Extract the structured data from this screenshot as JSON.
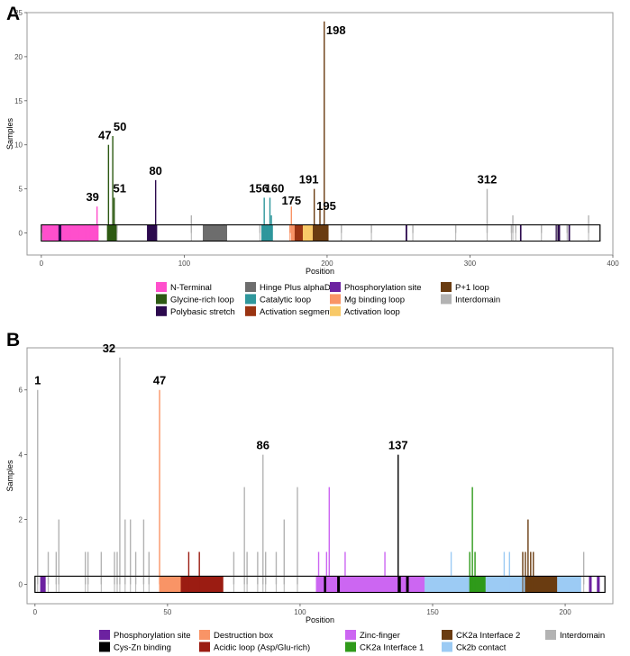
{
  "chart_data": [
    {
      "panel": "A",
      "type": "bar",
      "xlabel": "Position",
      "ylabel": "Samples",
      "xlim": [
        -10,
        400
      ],
      "ylim": [
        -2.5,
        25
      ],
      "xticks": [
        0,
        100,
        200,
        300,
        400
      ],
      "yticks": [
        0,
        5,
        10,
        15,
        20,
        25
      ],
      "legend": {
        "placement": "bottom",
        "columns": [
          [
            "N-Terminal",
            "Glycine-rich loop",
            "Polybasic stretch"
          ],
          [
            "Hinge Plus alphaD",
            "Catalytic loop",
            "Activation segment"
          ],
          [
            "Phosphorylation site",
            "Mg binding loop",
            "Activation loop"
          ],
          [
            "P+1 loop",
            "Interdomain"
          ]
        ]
      },
      "domain_colors": {
        "N-Terminal": "#ff4fcc",
        "Glycine-rich loop": "#2d5a13",
        "Polybasic stretch": "#2c0a4e",
        "Hinge Plus alphaD": "#6d6d6d",
        "Catalytic loop": "#2f979c",
        "Activation segment": "#9a3412",
        "Phosphorylation site": "#6c22a0",
        "Mg binding loop": "#f99466",
        "Activation loop": "#f8c968",
        "P+1 loop": "#6a3c11",
        "Interdomain": "#b3b3b3"
      },
      "protein_length": 391,
      "domains": [
        {
          "name": "N-Terminal",
          "start": 1,
          "end": 40
        },
        {
          "name": "Polybasic stretch",
          "start": 12,
          "end": 14
        },
        {
          "name": "Glycine-rich loop",
          "start": 46,
          "end": 53
        },
        {
          "name": "Polybasic stretch",
          "start": 74,
          "end": 81
        },
        {
          "name": "Hinge Plus alphaD",
          "start": 113,
          "end": 130
        },
        {
          "name": "Catalytic loop",
          "start": 154,
          "end": 162
        },
        {
          "name": "Activation segment",
          "start": 175,
          "end": 201
        },
        {
          "name": "Mg binding loop",
          "start": 175,
          "end": 177
        },
        {
          "name": "Activation loop",
          "start": 183,
          "end": 190
        },
        {
          "name": "P+1 loop",
          "start": 190,
          "end": 201
        },
        {
          "name": "Polybasic stretch",
          "start": 255,
          "end": 256
        },
        {
          "name": "Polybasic stretch",
          "start": 335,
          "end": 336
        },
        {
          "name": "Polybasic stretch",
          "start": 360,
          "end": 363
        },
        {
          "name": "Polybasic stretch",
          "start": 369,
          "end": 370
        }
      ],
      "mutations": [
        {
          "x": 1,
          "y": 1,
          "d": "N-Terminal"
        },
        {
          "x": 20,
          "y": 1,
          "d": "N-Terminal"
        },
        {
          "x": 26,
          "y": 1,
          "d": "N-Terminal"
        },
        {
          "x": 31,
          "y": 1,
          "d": "N-Terminal"
        },
        {
          "x": 34,
          "y": 1,
          "d": "N-Terminal"
        },
        {
          "x": 39,
          "y": 3,
          "d": "N-Terminal"
        },
        {
          "x": 47,
          "y": 10,
          "d": "Glycine-rich loop"
        },
        {
          "x": 50,
          "y": 11,
          "d": "Glycine-rich loop"
        },
        {
          "x": 51,
          "y": 4,
          "d": "Glycine-rich loop"
        },
        {
          "x": 52,
          "y": 1,
          "d": "Glycine-rich loop"
        },
        {
          "x": 53,
          "y": 1,
          "d": "Interdomain"
        },
        {
          "x": 80,
          "y": 6,
          "d": "Polybasic stretch"
        },
        {
          "x": 105,
          "y": 2,
          "d": "Interdomain"
        },
        {
          "x": 128,
          "y": 1,
          "d": "Hinge Plus alphaD"
        },
        {
          "x": 153,
          "y": 1,
          "d": "Interdomain"
        },
        {
          "x": 156,
          "y": 4,
          "d": "Catalytic loop"
        },
        {
          "x": 158,
          "y": 1,
          "d": "Catalytic loop"
        },
        {
          "x": 160,
          "y": 4,
          "d": "Catalytic loop"
        },
        {
          "x": 161,
          "y": 2,
          "d": "Catalytic loop"
        },
        {
          "x": 174,
          "y": 1,
          "d": "Mg binding loop"
        },
        {
          "x": 175,
          "y": 3,
          "d": "Mg binding loop"
        },
        {
          "x": 177,
          "y": 1,
          "d": "Mg binding loop"
        },
        {
          "x": 191,
          "y": 5,
          "d": "P+1 loop"
        },
        {
          "x": 192,
          "y": 1,
          "d": "P+1 loop"
        },
        {
          "x": 195,
          "y": 3,
          "d": "P+1 loop"
        },
        {
          "x": 197,
          "y": 1,
          "d": "P+1 loop"
        },
        {
          "x": 198,
          "y": 24,
          "d": "P+1 loop"
        },
        {
          "x": 200,
          "y": 1,
          "d": "P+1 loop"
        },
        {
          "x": 210,
          "y": 1,
          "d": "Interdomain"
        },
        {
          "x": 231,
          "y": 1,
          "d": "Interdomain"
        },
        {
          "x": 260,
          "y": 1,
          "d": "Interdomain"
        },
        {
          "x": 290,
          "y": 1,
          "d": "Interdomain"
        },
        {
          "x": 312,
          "y": 5,
          "d": "Interdomain"
        },
        {
          "x": 329,
          "y": 1,
          "d": "Interdomain"
        },
        {
          "x": 330,
          "y": 2,
          "d": "Interdomain"
        },
        {
          "x": 332,
          "y": 1,
          "d": "Interdomain"
        },
        {
          "x": 350,
          "y": 1,
          "d": "Interdomain"
        },
        {
          "x": 361,
          "y": 1,
          "d": "Interdomain"
        },
        {
          "x": 368,
          "y": 1,
          "d": "Interdomain"
        },
        {
          "x": 383,
          "y": 2,
          "d": "Interdomain"
        }
      ],
      "annotations": [
        {
          "text": "39",
          "x": 39,
          "y": 3
        },
        {
          "text": "47",
          "x": 47,
          "y": 10
        },
        {
          "text": "50",
          "x": 50,
          "y": 11
        },
        {
          "text": "51",
          "x": 51,
          "y": 4
        },
        {
          "text": "80",
          "x": 80,
          "y": 6
        },
        {
          "text": "156",
          "x": 156,
          "y": 4
        },
        {
          "text": "160",
          "x": 160,
          "y": 4
        },
        {
          "text": "175",
          "x": 175,
          "y": 3
        },
        {
          "text": "191",
          "x": 191,
          "y": 5
        },
        {
          "text": "195",
          "x": 195,
          "y": 3
        },
        {
          "text": "198",
          "x": 198,
          "y": 24
        },
        {
          "text": "312",
          "x": 312,
          "y": 5
        }
      ]
    },
    {
      "panel": "B",
      "type": "bar",
      "xlabel": "Position",
      "ylabel": "Samples",
      "xlim": [
        -3,
        218
      ],
      "ylim": [
        -0.6,
        7.3
      ],
      "xticks": [
        0,
        50,
        100,
        150,
        200
      ],
      "yticks": [
        0,
        2,
        4,
        6
      ],
      "legend": {
        "placement": "bottom",
        "columns": [
          [
            "Phosphorylation site",
            "Cys-Zn binding"
          ],
          [
            "Destruction box",
            "Acidic loop (Asp/Glu-rich)"
          ],
          [
            "Zinc-finger",
            "CK2a Interface 1"
          ],
          [
            "CK2a Interface 2",
            "Ck2b contact"
          ],
          [
            "Interdomain"
          ]
        ]
      },
      "domain_colors": {
        "Phosphorylation site": "#6c22a0",
        "Cys-Zn binding": "#000000",
        "Destruction box": "#f99466",
        "Acidic loop (Asp/Glu-rich)": "#9b1c12",
        "Zinc-finger": "#cc66f2",
        "CK2a Interface 1": "#2f9a1a",
        "CK2a Interface 2": "#6a3c11",
        "Ck2b contact": "#9ccbf4",
        "Interdomain": "#b3b3b3"
      },
      "protein_length": 215,
      "domains": [
        {
          "name": "Phosphorylation site",
          "start": 2,
          "end": 4
        },
        {
          "name": "Destruction box",
          "start": 47,
          "end": 55
        },
        {
          "name": "Acidic loop (Asp/Glu-rich)",
          "start": 55,
          "end": 71
        },
        {
          "name": "Zinc-finger",
          "start": 106,
          "end": 147
        },
        {
          "name": "Cys-Zn binding",
          "start": 109,
          "end": 110
        },
        {
          "name": "Cys-Zn binding",
          "start": 114,
          "end": 115
        },
        {
          "name": "Cys-Zn binding",
          "start": 137,
          "end": 138
        },
        {
          "name": "Cys-Zn binding",
          "start": 140,
          "end": 141
        },
        {
          "name": "Ck2b contact",
          "start": 147,
          "end": 164
        },
        {
          "name": "CK2a Interface 1",
          "start": 164,
          "end": 170
        },
        {
          "name": "Ck2b contact",
          "start": 170,
          "end": 185
        },
        {
          "name": "CK2a Interface 2",
          "start": 185,
          "end": 197
        },
        {
          "name": "Ck2b contact",
          "start": 197,
          "end": 206
        },
        {
          "name": "Phosphorylation site",
          "start": 209,
          "end": 210
        },
        {
          "name": "Phosphorylation site",
          "start": 212,
          "end": 213
        }
      ],
      "mutations": [
        {
          "x": 1,
          "y": 6,
          "d": "Interdomain"
        },
        {
          "x": 5,
          "y": 1,
          "d": "Interdomain"
        },
        {
          "x": 8,
          "y": 1,
          "d": "Interdomain"
        },
        {
          "x": 9,
          "y": 2,
          "d": "Interdomain"
        },
        {
          "x": 19,
          "y": 1,
          "d": "Interdomain"
        },
        {
          "x": 20,
          "y": 1,
          "d": "Interdomain"
        },
        {
          "x": 25,
          "y": 1,
          "d": "Interdomain"
        },
        {
          "x": 30,
          "y": 1,
          "d": "Interdomain"
        },
        {
          "x": 31,
          "y": 1,
          "d": "Interdomain"
        },
        {
          "x": 32,
          "y": 7,
          "d": "Interdomain"
        },
        {
          "x": 34,
          "y": 2,
          "d": "Interdomain"
        },
        {
          "x": 36,
          "y": 2,
          "d": "Interdomain"
        },
        {
          "x": 38,
          "y": 1,
          "d": "Interdomain"
        },
        {
          "x": 41,
          "y": 2,
          "d": "Interdomain"
        },
        {
          "x": 43,
          "y": 1,
          "d": "Interdomain"
        },
        {
          "x": 47,
          "y": 6,
          "d": "Destruction box"
        },
        {
          "x": 58,
          "y": 1,
          "d": "Acidic loop (Asp/Glu-rich)"
        },
        {
          "x": 62,
          "y": 1,
          "d": "Acidic loop (Asp/Glu-rich)"
        },
        {
          "x": 75,
          "y": 1,
          "d": "Interdomain"
        },
        {
          "x": 79,
          "y": 3,
          "d": "Interdomain"
        },
        {
          "x": 80,
          "y": 1,
          "d": "Interdomain"
        },
        {
          "x": 84,
          "y": 1,
          "d": "Interdomain"
        },
        {
          "x": 86,
          "y": 4,
          "d": "Interdomain"
        },
        {
          "x": 87,
          "y": 1,
          "d": "Interdomain"
        },
        {
          "x": 91,
          "y": 1,
          "d": "Interdomain"
        },
        {
          "x": 94,
          "y": 2,
          "d": "Interdomain"
        },
        {
          "x": 99,
          "y": 3,
          "d": "Interdomain"
        },
        {
          "x": 107,
          "y": 1,
          "d": "Zinc-finger"
        },
        {
          "x": 110,
          "y": 1,
          "d": "Zinc-finger"
        },
        {
          "x": 111,
          "y": 3,
          "d": "Zinc-finger"
        },
        {
          "x": 117,
          "y": 1,
          "d": "Zinc-finger"
        },
        {
          "x": 132,
          "y": 1,
          "d": "Zinc-finger"
        },
        {
          "x": 137,
          "y": 4,
          "d": "Cys-Zn binding"
        },
        {
          "x": 157,
          "y": 1,
          "d": "Ck2b contact"
        },
        {
          "x": 164,
          "y": 1,
          "d": "CK2a Interface 1"
        },
        {
          "x": 165,
          "y": 3,
          "d": "CK2a Interface 1"
        },
        {
          "x": 166,
          "y": 1,
          "d": "CK2a Interface 1"
        },
        {
          "x": 177,
          "y": 1,
          "d": "Ck2b contact"
        },
        {
          "x": 179,
          "y": 1,
          "d": "Ck2b contact"
        },
        {
          "x": 184,
          "y": 1,
          "d": "CK2a Interface 2"
        },
        {
          "x": 185,
          "y": 1,
          "d": "CK2a Interface 2"
        },
        {
          "x": 186,
          "y": 2,
          "d": "CK2a Interface 2"
        },
        {
          "x": 187,
          "y": 1,
          "d": "CK2a Interface 2"
        },
        {
          "x": 188,
          "y": 1,
          "d": "CK2a Interface 2"
        },
        {
          "x": 207,
          "y": 1,
          "d": "Interdomain"
        }
      ],
      "annotations": [
        {
          "text": "1",
          "x": 1,
          "y": 6
        },
        {
          "text": "32",
          "x": 32,
          "y": 7
        },
        {
          "text": "47",
          "x": 47,
          "y": 6
        },
        {
          "text": "86",
          "x": 86,
          "y": 4
        },
        {
          "text": "137",
          "x": 137,
          "y": 4
        }
      ]
    }
  ]
}
